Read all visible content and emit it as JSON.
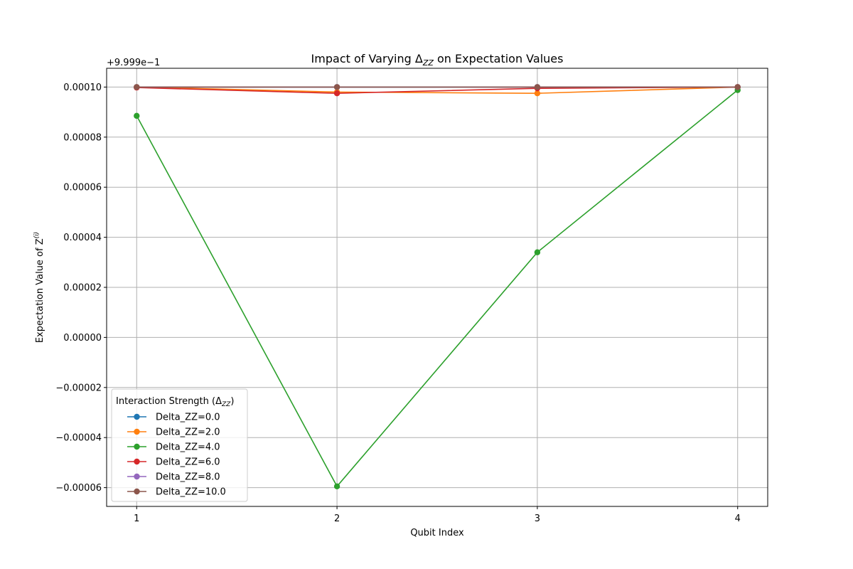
{
  "chart_data": {
    "type": "line",
    "title": "Impact of Varying Δ",
    "title_sub": "ZZ",
    "title_suffix": " on Expectation Values",
    "xlabel": "Qubit Index",
    "ylabel": "Expectation Value of Z",
    "ylabel_sup": "(i)",
    "offset_text": "+9.999e−1",
    "x": [
      1,
      2,
      3,
      4
    ],
    "xlim": [
      0.85,
      4.15
    ],
    "ylim": [
      -6.75e-05,
      0.0001075
    ],
    "yticks": [
      -6e-05,
      -4e-05,
      -2e-05,
      0.0,
      2e-05,
      4e-05,
      6e-05,
      8e-05,
      0.0001
    ],
    "ytick_labels": [
      "−0.00006",
      "−0.00004",
      "−0.00002",
      "0.00000",
      "0.00002",
      "0.00004",
      "0.00006",
      "0.00008",
      "0.00010"
    ],
    "xtick_labels": [
      "1",
      "2",
      "3",
      "4"
    ],
    "grid": true,
    "legend": {
      "title": "Interaction Strength (Δ",
      "title_sub": "ZZ",
      "title_suffix": ")",
      "placement": "lower-left"
    },
    "series": [
      {
        "name": "Delta_ZZ=0.0",
        "color": "#1f77b4",
        "values": [
          0.0001,
          0.0001,
          0.0001,
          0.0001
        ]
      },
      {
        "name": "Delta_ZZ=2.0",
        "color": "#ff7f0e",
        "values": [
          0.0001,
          9.8e-05,
          9.75e-05,
          0.0001
        ]
      },
      {
        "name": "Delta_ZZ=4.0",
        "color": "#2ca02c",
        "values": [
          8.85e-05,
          -5.95e-05,
          3.4e-05,
          9.88e-05
        ]
      },
      {
        "name": "Delta_ZZ=6.0",
        "color": "#d62728",
        "values": [
          9.98e-05,
          9.75e-05,
          9.95e-05,
          0.0001
        ]
      },
      {
        "name": "Delta_ZZ=8.0",
        "color": "#9467bd",
        "values": [
          0.0001,
          0.0001,
          0.0001,
          0.0001
        ]
      },
      {
        "name": "Delta_ZZ=10.0",
        "color": "#8c564b",
        "values": [
          0.0001,
          0.0001,
          0.0001,
          0.0001
        ]
      }
    ]
  }
}
